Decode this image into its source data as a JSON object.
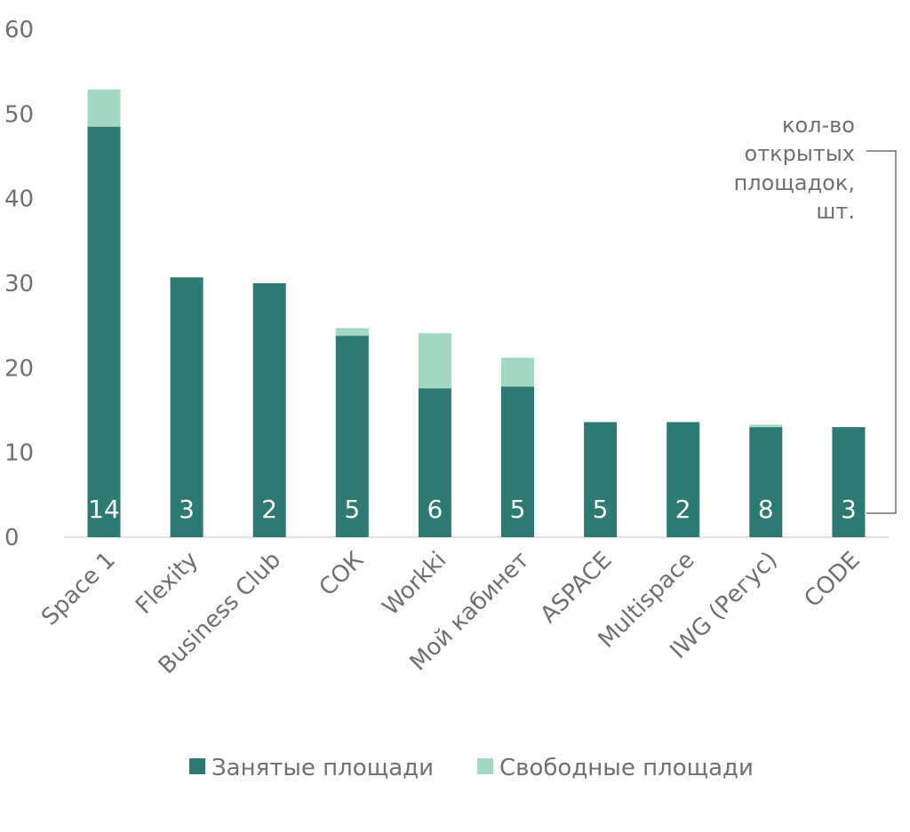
{
  "chart_data": {
    "type": "bar",
    "stacked": true,
    "title": "",
    "xlabel": "",
    "ylabel": "",
    "ylim": [
      0,
      60
    ],
    "yticks": [
      0,
      10,
      20,
      30,
      40,
      50,
      60
    ],
    "categories": [
      "Space 1",
      "Flexity",
      "Business Club",
      "СОК",
      "Workki",
      "Мой кабинет",
      "ASPACE",
      "Multispace",
      "IWG (Регус)",
      "CODE"
    ],
    "series": [
      {
        "name": "Занятые площади",
        "color": "#2d7a72",
        "values": [
          48.5,
          30.7,
          30.0,
          23.8,
          17.6,
          17.8,
          13.6,
          13.6,
          13.0,
          13.0
        ]
      },
      {
        "name": "Свободные площади",
        "color": "#a3d8c3",
        "values": [
          4.4,
          0.0,
          0.0,
          0.9,
          6.5,
          3.4,
          0.0,
          0.0,
          0.3,
          0.0
        ]
      }
    ],
    "data_labels": [
      "14",
      "3",
      "2",
      "5",
      "6",
      "5",
      "5",
      "2",
      "8",
      "3"
    ],
    "annotation": [
      "кол-во",
      "открытых",
      "площадок,",
      "шт."
    ],
    "legend_position": "bottom",
    "grid": false
  }
}
